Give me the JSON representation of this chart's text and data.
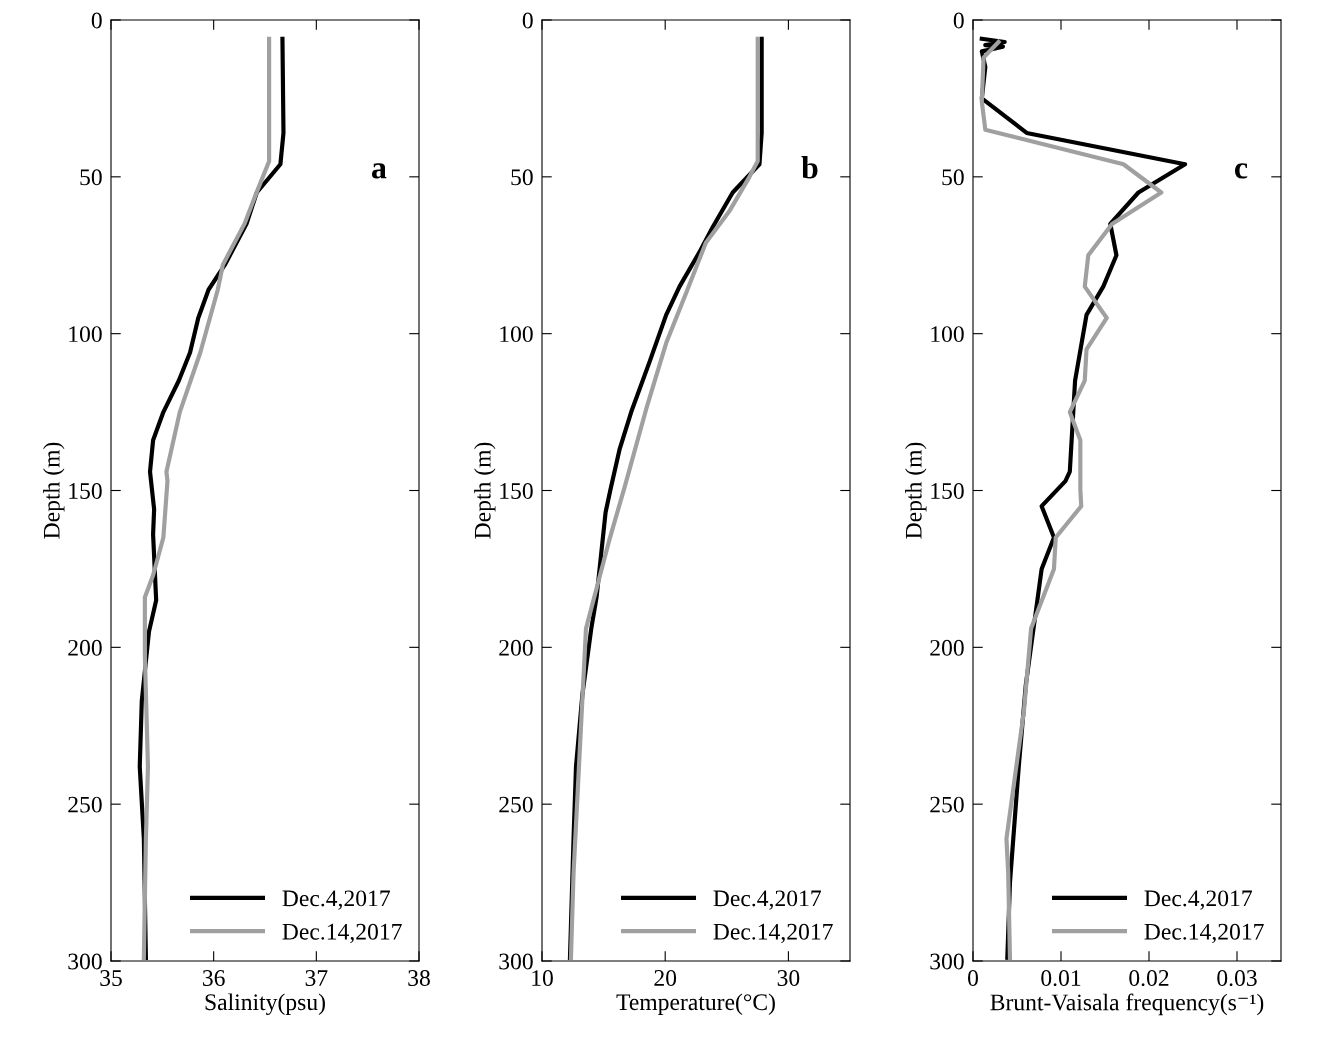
{
  "chart_data": [
    {
      "type": "line",
      "xlabel": "Salinity(psu)",
      "ylabel": "Depth (m)",
      "xlim": [
        35,
        38
      ],
      "xticks": [
        35,
        36,
        37,
        38
      ],
      "ylim": [
        300,
        0
      ],
      "yticks": [
        0,
        50,
        100,
        150,
        200,
        250,
        300
      ],
      "legend": "bottom right",
      "grid": false,
      "annotations": [
        "a"
      ],
      "series": [
        {
          "name": "Dec.4,2017",
          "color": "#000000",
          "x": [
            36.67,
            36.68,
            36.65,
            36.42,
            36.32,
            36.11,
            35.95,
            35.85,
            35.77,
            35.66,
            35.51,
            35.41,
            35.38,
            35.42,
            35.41,
            35.44,
            35.37,
            35.3,
            35.28,
            35.32,
            35.34
          ],
          "values": [
            6,
            36,
            46,
            55,
            65,
            78,
            86,
            95,
            106,
            115,
            125,
            134,
            144,
            156,
            164,
            185,
            195,
            217,
            238,
            261,
            299
          ]
        },
        {
          "name": "Dec.14,2017",
          "color": "#a0a0a0",
          "x": [
            36.54,
            36.54,
            36.43,
            36.3,
            36.09,
            36.04,
            35.87,
            35.67,
            35.54,
            35.55,
            35.51,
            35.41,
            35.33,
            35.33,
            35.36,
            35.34,
            35.32
          ],
          "values": [
            6,
            45,
            54,
            65,
            78,
            86,
            106,
            125,
            144,
            147,
            165,
            177,
            184,
            203,
            238,
            261,
            299
          ]
        }
      ]
    },
    {
      "type": "line",
      "xlabel": "Temperature(°C)",
      "ylabel": "Depth (m)",
      "xlim": [
        10,
        35
      ],
      "xticks": [
        10,
        20,
        30
      ],
      "ylim": [
        300,
        0
      ],
      "yticks": [
        0,
        50,
        100,
        150,
        200,
        250,
        300
      ],
      "legend": "bottom right",
      "grid": false,
      "annotations": [
        "b"
      ],
      "series": [
        {
          "name": "Dec.4,2017",
          "color": "#000000",
          "x": [
            27.83,
            27.83,
            27.65,
            25.48,
            23.86,
            22.78,
            21.16,
            20.08,
            18.73,
            17.24,
            16.29,
            15.54,
            15.16,
            14.43,
            14.0,
            13.28,
            12.76,
            12.56,
            12.27
          ],
          "values": [
            6,
            36,
            46,
            55,
            66,
            74,
            85,
            94,
            109,
            125,
            137,
            150,
            157,
            184,
            194,
            215,
            238,
            261,
            299
          ]
        },
        {
          "name": "Dec.14,2017",
          "color": "#a0a0a0",
          "x": [
            27.51,
            27.51,
            26.84,
            25.2,
            23.3,
            21.7,
            20.08,
            18.46,
            16.7,
            15.45,
            13.57,
            13.0,
            12.56,
            12.35
          ],
          "values": [
            6,
            45,
            50,
            61,
            71,
            87,
            103,
            124,
            149,
            166,
            194,
            238,
            272,
            299
          ]
        }
      ]
    },
    {
      "type": "line",
      "xlabel": "Brunt-Vaisala frequency(s⁻¹)",
      "ylabel": "Depth (m)",
      "xlim": [
        0,
        0.035
      ],
      "xticks": [
        0,
        0.01,
        0.02,
        0.03
      ],
      "ylim": [
        300,
        0
      ],
      "yticks": [
        0,
        50,
        100,
        150,
        200,
        250,
        300
      ],
      "legend": "bottom right",
      "grid": false,
      "annotations": [
        "c"
      ],
      "series": [
        {
          "name": "Dec.4,2017",
          "color": "#000000",
          "x": [
            0.001,
            0.0036,
            0.0014,
            0.0034,
            0.001,
            0.0014,
            0.001,
            0.0061,
            0.0241,
            0.0188,
            0.0156,
            0.0163,
            0.0148,
            0.0129,
            0.0116,
            0.011,
            0.0105,
            0.0078,
            0.0092,
            0.0078,
            0.006,
            0.0052,
            0.0042,
            0.0039
          ],
          "values": [
            6,
            7,
            8,
            8.5,
            10,
            15,
            25,
            36,
            46,
            55,
            65,
            75,
            85,
            94,
            115,
            144,
            147,
            155,
            165,
            175,
            212,
            238,
            275,
            299
          ]
        },
        {
          "name": "Dec.14,2017",
          "color": "#a0a0a0",
          "x": [
            0.0029,
            0.0012,
            0.001,
            0.0014,
            0.0171,
            0.0214,
            0.0158,
            0.0131,
            0.0127,
            0.0152,
            0.0129,
            0.0127,
            0.011,
            0.0122,
            0.0122,
            0.0123,
            0.0094,
            0.0092,
            0.0066,
            0.0058,
            0.0038,
            0.004,
            0.0042
          ],
          "values": [
            7,
            12,
            26,
            35,
            46,
            55,
            65,
            75,
            85,
            95,
            105,
            115,
            125,
            134,
            150,
            155,
            165,
            175,
            194,
            220,
            261,
            272,
            299
          ]
        }
      ]
    }
  ]
}
